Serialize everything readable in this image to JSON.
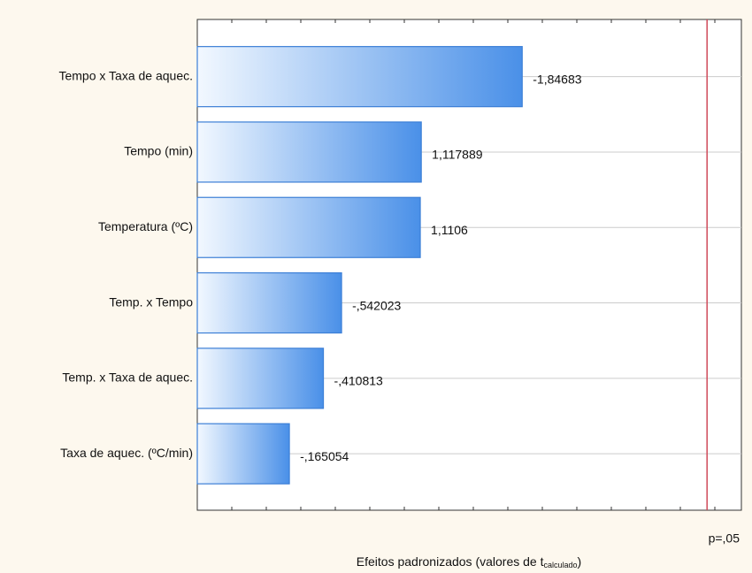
{
  "chart_data": {
    "type": "pareto",
    "categories": [
      "Tempo x Taxa de aquec.",
      "Tempo (min)",
      "Temperatura (ºC)",
      "Temp. x Tempo",
      "Temp. x Taxa de aquec.",
      "Taxa de aquec. (ºC/min)"
    ],
    "values": [
      -1.84683,
      1.117889,
      1.1106,
      -0.542023,
      -0.410813,
      -0.165054
    ],
    "value_labels": [
      "-1,84683",
      "1,117889",
      "1,1106",
      "-,542023",
      "-,410813",
      "-,165054"
    ],
    "color": "#4a90e8",
    "xlim": [
      -0.5,
      3.43
    ],
    "critical_value": 3.182,
    "critical_label": "p=,05",
    "critical_color": "#d04a5a",
    "xlabel": "Efeitos padronizados (valores de t",
    "xlabel_sub": "calculado",
    "xlabel_end": ")"
  }
}
